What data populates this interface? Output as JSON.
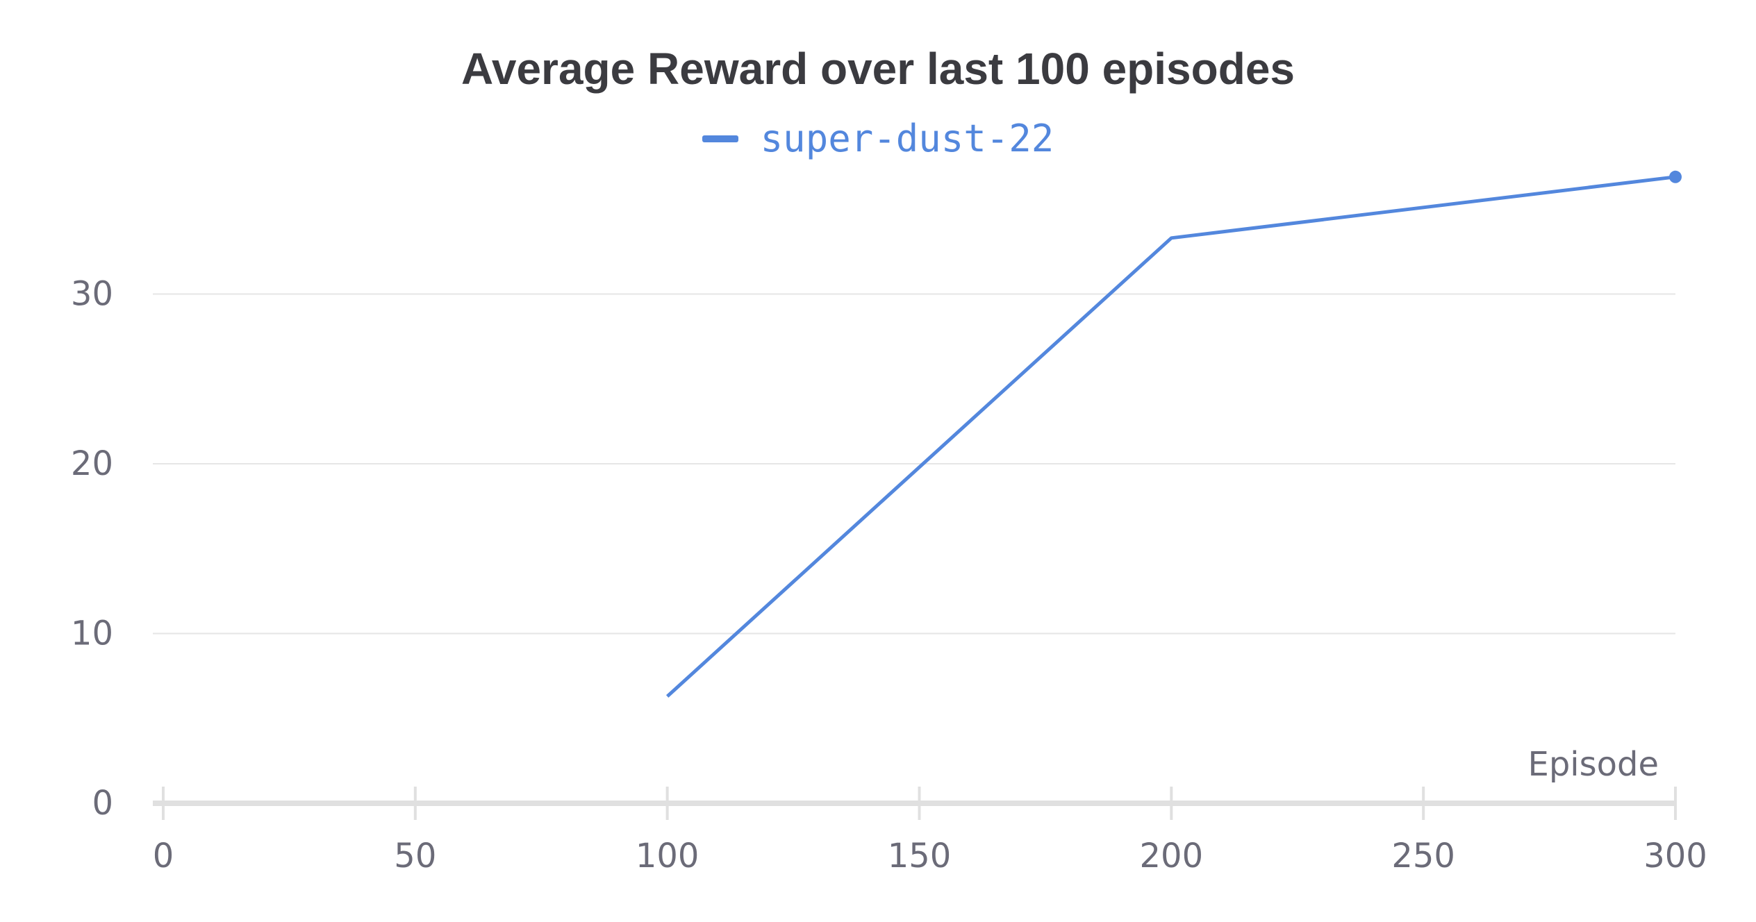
{
  "chart_data": {
    "type": "line",
    "title": "Average Reward over last 100 episodes",
    "xlabel": "Episode",
    "ylabel": "",
    "xlim": [
      0,
      300
    ],
    "ylim": [
      0,
      37
    ],
    "x_ticks": [
      "0",
      "50",
      "100",
      "150",
      "200",
      "250",
      "300"
    ],
    "y_ticks": [
      "0",
      "10",
      "20",
      "30"
    ],
    "grid": true,
    "legend_position": "top-center",
    "series": [
      {
        "name": "super-dust-22",
        "color": "#5387dd",
        "x": [
          100,
          200,
          300
        ],
        "y": [
          6.3,
          33.3,
          36.9
        ]
      }
    ]
  }
}
